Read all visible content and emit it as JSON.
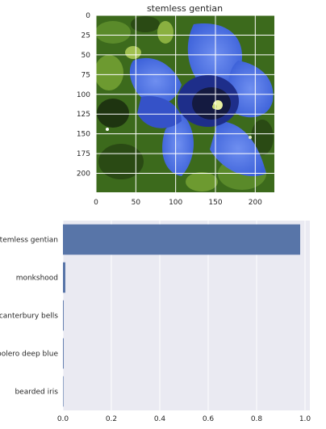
{
  "chart_data": [
    {
      "type": "image",
      "title": "stemless gentian",
      "xlim": [
        0,
        224
      ],
      "ylim": [
        224,
        0
      ],
      "xticks": [
        0,
        50,
        100,
        150,
        200
      ],
      "yticks": [
        0,
        25,
        50,
        75,
        100,
        125,
        150,
        175,
        200
      ],
      "grid": true,
      "colors": {
        "petal": "#4a6fe0",
        "petal_light": "#6f8ff0",
        "petal_dark": "#1e2e8a",
        "center": "#141a40",
        "foliage": "#3c6a1c",
        "foliage_dark": "#1e3410"
      }
    },
    {
      "type": "bar",
      "orientation": "horizontal",
      "categories": [
        "stemless gentian",
        "monkshood",
        "canterbury bells",
        "bolero deep blue",
        "bearded iris"
      ],
      "values": [
        0.98,
        0.01,
        0.003,
        0.003,
        0.001
      ],
      "xlim": [
        0,
        1.02
      ],
      "xticks": [
        "0.0",
        "0.2",
        "0.4",
        "0.6",
        "0.8",
        "1.0"
      ],
      "grid": true,
      "bar_color": "#5875a8",
      "background": "#eaeaf2"
    }
  ]
}
